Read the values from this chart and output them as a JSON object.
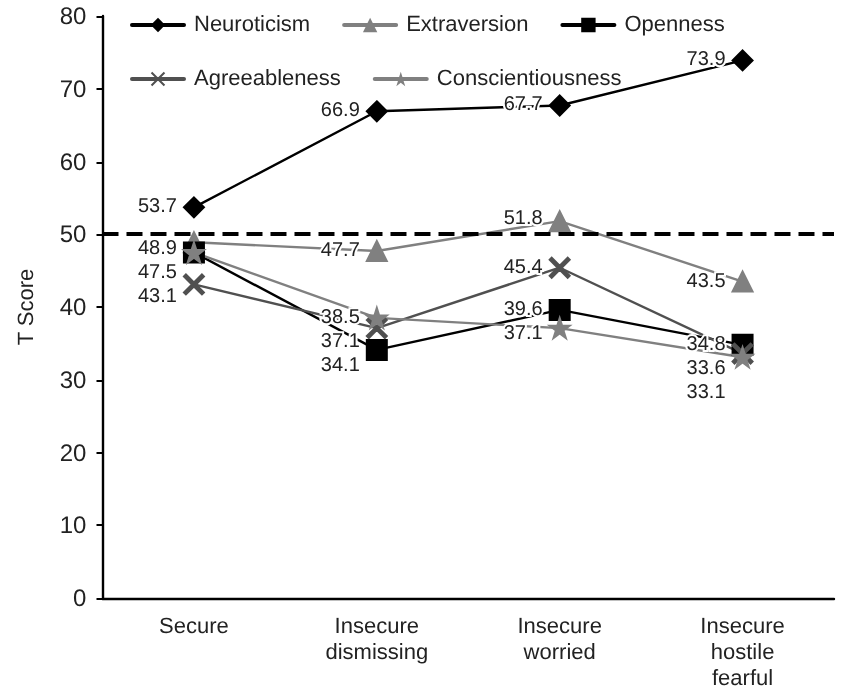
{
  "chart_data": {
    "type": "line",
    "ylabel": "T Score",
    "categories": [
      "Secure",
      "Insecure\ndismissing",
      "Insecure\nworried",
      "Insecure\nhostile\nfearful"
    ],
    "ylim": [
      0,
      80
    ],
    "yticks": [
      0,
      10,
      20,
      30,
      40,
      50,
      60,
      70,
      80
    ],
    "grid": false,
    "legend": "top",
    "line_style": "solid",
    "ref_lines": [
      {
        "axis": "y",
        "value": 50,
        "color": "#000000",
        "line_style": "dashed"
      }
    ],
    "series": [
      {
        "name": "Neuroticism",
        "color": "#000000",
        "marker": "diamond",
        "values": [
          53.7,
          66.9,
          67.7,
          73.9
        ],
        "value_labels": [
          "53.7",
          "66.9",
          "67.7",
          "73.9"
        ]
      },
      {
        "name": "Extraversion",
        "color": "#808080",
        "marker": "triangle",
        "values": [
          48.9,
          47.7,
          51.8,
          43.5
        ],
        "value_labels": [
          "48.9",
          "47.7",
          "51.8",
          "43.5"
        ]
      },
      {
        "name": "Openness",
        "color": "#000000",
        "marker": "square",
        "values": [
          47.5,
          34.1,
          39.6,
          34.8
        ],
        "value_labels": [
          "47.5",
          "34.1",
          "39.6",
          "34.8"
        ]
      },
      {
        "name": "Agreeableness",
        "color": "#505050",
        "marker": "cross",
        "values": [
          43.1,
          37.1,
          45.4,
          33.6
        ],
        "value_labels": [
          "43.1",
          "37.1",
          "45.4",
          "33.6"
        ]
      },
      {
        "name": "Conscientiousness",
        "color": "#808080",
        "marker": "star",
        "values": [
          47.5,
          38.5,
          37.1,
          33.1
        ],
        "value_labels": [
          null,
          "38.5",
          "37.1",
          "33.1"
        ]
      }
    ]
  }
}
